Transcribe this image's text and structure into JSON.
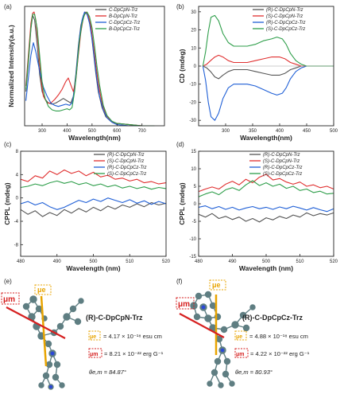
{
  "panels": {
    "a": "(a)",
    "b": "(b)",
    "c": "(c)",
    "d": "(d)",
    "e": "(e)",
    "f": "(f)"
  },
  "chart_data": [
    {
      "type": "line",
      "panel": "a",
      "xlabel": "Wavelength(nm)",
      "ylabel": "Normalized Intensity(a.u.)",
      "xlim": [
        230,
        790
      ],
      "ylim": [
        0,
        1.05
      ],
      "xticks": [
        300,
        400,
        500,
        600,
        700
      ],
      "yticks": [],
      "legend": "top-right",
      "series": [
        {
          "name": "C-DpCpN-Trz",
          "color": "#555555",
          "x": [
            235,
            245,
            255,
            262,
            270,
            280,
            290,
            300,
            310,
            325,
            340,
            355,
            370,
            385,
            400,
            415,
            425,
            435,
            445,
            455,
            465,
            475,
            485,
            495,
            505,
            515,
            525,
            540,
            555,
            575,
            600,
            650,
            700,
            750
          ],
          "y": [
            0.3,
            0.55,
            0.85,
            0.97,
            0.93,
            0.72,
            0.45,
            0.3,
            0.24,
            0.2,
            0.19,
            0.2,
            0.22,
            0.24,
            0.22,
            0.2,
            0.26,
            0.45,
            0.7,
            0.88,
            0.97,
            1.0,
            0.96,
            0.85,
            0.66,
            0.46,
            0.3,
            0.16,
            0.08,
            0.04,
            0.02,
            0.01,
            0.0,
            0.0
          ]
        },
        {
          "name": "B-DpCpN-Trz",
          "color": "#e03030",
          "x": [
            235,
            245,
            255,
            262,
            268,
            275,
            285,
            295,
            305,
            320,
            335,
            350,
            365,
            380,
            395,
            405,
            415,
            425,
            435,
            445,
            455,
            465,
            475,
            485,
            495,
            505,
            515,
            525,
            540,
            555,
            575,
            600,
            650,
            700,
            750
          ],
          "y": [
            0.35,
            0.62,
            0.9,
            0.99,
            1.0,
            0.93,
            0.7,
            0.42,
            0.26,
            0.2,
            0.2,
            0.23,
            0.27,
            0.32,
            0.39,
            0.42,
            0.36,
            0.3,
            0.4,
            0.62,
            0.82,
            0.95,
            1.0,
            0.97,
            0.88,
            0.72,
            0.54,
            0.37,
            0.2,
            0.1,
            0.04,
            0.02,
            0.01,
            0.0,
            0.0
          ]
        },
        {
          "name": "C-DpCpCz-Trz",
          "color": "#1f5fd6",
          "x": [
            235,
            245,
            255,
            265,
            275,
            290,
            305,
            320,
            335,
            350,
            365,
            380,
            395,
            410,
            420,
            430,
            440,
            450,
            460,
            470,
            480,
            490,
            500,
            510,
            520,
            530,
            545,
            560,
            580,
            600,
            650,
            700,
            750
          ],
          "y": [
            0.22,
            0.42,
            0.62,
            0.73,
            0.65,
            0.48,
            0.34,
            0.26,
            0.2,
            0.18,
            0.17,
            0.18,
            0.19,
            0.18,
            0.2,
            0.32,
            0.55,
            0.78,
            0.93,
            1.0,
            0.98,
            0.9,
            0.76,
            0.58,
            0.4,
            0.26,
            0.14,
            0.07,
            0.03,
            0.01,
            0.0,
            0.0,
            0.0
          ]
        },
        {
          "name": "B-DpCpCz-Trz",
          "color": "#2e9e4a",
          "x": [
            235,
            245,
            255,
            262,
            270,
            280,
            290,
            300,
            312,
            325,
            340,
            355,
            370,
            385,
            400,
            410,
            420,
            430,
            440,
            450,
            460,
            470,
            480,
            490,
            500,
            510,
            520,
            530,
            545,
            560,
            580,
            600,
            650,
            700,
            750
          ],
          "y": [
            0.32,
            0.58,
            0.86,
            0.98,
            0.98,
            0.86,
            0.62,
            0.38,
            0.24,
            0.17,
            0.14,
            0.13,
            0.13,
            0.14,
            0.15,
            0.14,
            0.16,
            0.3,
            0.52,
            0.75,
            0.9,
            0.98,
            1.0,
            0.96,
            0.86,
            0.7,
            0.52,
            0.36,
            0.18,
            0.09,
            0.04,
            0.02,
            0.01,
            0.0,
            0.0
          ]
        }
      ]
    },
    {
      "type": "line",
      "panel": "b",
      "xlabel": "Wavelength(nm)",
      "ylabel": "CD (mdeg)",
      "xlim": [
        250,
        500
      ],
      "ylim": [
        -33,
        33
      ],
      "xticks": [
        300,
        350,
        400,
        450,
        500
      ],
      "yticks": [
        -30,
        -20,
        -10,
        0,
        10,
        20,
        30
      ],
      "legend": "top-right",
      "series": [
        {
          "name": "(R)-C-DpCpN-Trz",
          "color": "#555555",
          "x": [
            258,
            265,
            272,
            280,
            287,
            295,
            305,
            315,
            325,
            340,
            355,
            370,
            385,
            400,
            410,
            420,
            430,
            440,
            450,
            465,
            480,
            500
          ],
          "y": [
            0,
            -1,
            -3,
            -6,
            -7,
            -5,
            -3,
            -2,
            -2,
            -2,
            -3,
            -4,
            -5,
            -5,
            -4,
            -2,
            -1,
            0,
            0,
            0,
            0,
            0
          ]
        },
        {
          "name": "(S)-C-DpCpN-Trz",
          "color": "#e03030",
          "x": [
            258,
            265,
            272,
            280,
            287,
            295,
            305,
            315,
            325,
            340,
            355,
            370,
            385,
            400,
            410,
            420,
            430,
            440,
            450,
            465,
            480,
            500
          ],
          "y": [
            0,
            1,
            3,
            5,
            6,
            5,
            3,
            2,
            2,
            2,
            3,
            4,
            5,
            5,
            4,
            2,
            1,
            0,
            0,
            0,
            0,
            0
          ]
        },
        {
          "name": "(R)-C-DpCpCz-Trz",
          "color": "#1f5fd6",
          "x": [
            258,
            263,
            268,
            273,
            280,
            287,
            295,
            305,
            315,
            325,
            340,
            355,
            370,
            385,
            395,
            405,
            412,
            420,
            430,
            440,
            450,
            465,
            480,
            500
          ],
          "y": [
            0,
            -8,
            -20,
            -28,
            -30,
            -26,
            -18,
            -12,
            -10,
            -10,
            -10,
            -11,
            -13,
            -15,
            -16,
            -15,
            -12,
            -7,
            -3,
            -1,
            0,
            0,
            0,
            0
          ]
        },
        {
          "name": "(S)-C-DpCpCz-Trz",
          "color": "#2e9e4a",
          "x": [
            258,
            263,
            268,
            273,
            280,
            287,
            295,
            305,
            315,
            325,
            340,
            355,
            370,
            385,
            395,
            405,
            412,
            420,
            430,
            440,
            450,
            465,
            480,
            500
          ],
          "y": [
            0,
            8,
            19,
            27,
            28,
            25,
            18,
            13,
            11,
            11,
            11,
            12,
            14,
            15,
            16,
            15,
            12,
            7,
            3,
            1,
            0,
            0,
            0,
            0
          ]
        }
      ]
    },
    {
      "type": "line",
      "panel": "c",
      "xlabel": "Wavelength (nm)",
      "ylabel": "CPPL (mdeg)",
      "xlim": [
        480,
        520
      ],
      "ylim": [
        -10,
        8
      ],
      "xticks": [
        480,
        490,
        500,
        510,
        520
      ],
      "yticks": [
        -8,
        -4,
        0,
        4,
        8
      ],
      "legend": "top-right",
      "series": [
        {
          "name": "(R)-C-DpCpN-Trz",
          "color": "#555555",
          "x": [
            480,
            482,
            484,
            486,
            488,
            490,
            492,
            494,
            496,
            498,
            500,
            502,
            504,
            506,
            508,
            510,
            512,
            514,
            516,
            518,
            520
          ],
          "y": [
            -2.0,
            -2.8,
            -2.2,
            -3.2,
            -2.5,
            -3.0,
            -2.0,
            -2.6,
            -1.8,
            -2.4,
            -1.6,
            -2.2,
            -1.4,
            -1.9,
            -1.2,
            -1.6,
            -1.0,
            -1.5,
            -0.8,
            -1.2,
            -0.9
          ]
        },
        {
          "name": "(S)-C-DpCpN-Trz",
          "color": "#e03030",
          "x": [
            480,
            482,
            484,
            486,
            488,
            490,
            492,
            494,
            496,
            498,
            500,
            502,
            504,
            506,
            508,
            510,
            512,
            514,
            516,
            518,
            520
          ],
          "y": [
            3.2,
            2.8,
            3.8,
            3.4,
            4.6,
            4.0,
            4.8,
            4.2,
            4.6,
            3.8,
            4.4,
            3.6,
            3.9,
            3.2,
            3.4,
            2.9,
            3.2,
            2.6,
            2.8,
            2.4,
            2.6
          ]
        },
        {
          "name": "(R)-C-DpCpCz-Trz",
          "color": "#1f5fd6",
          "x": [
            480,
            482,
            484,
            486,
            488,
            490,
            492,
            494,
            496,
            498,
            500,
            502,
            504,
            506,
            508,
            510,
            512,
            514,
            516,
            518,
            520
          ],
          "y": [
            -1.0,
            -0.6,
            -1.2,
            -0.8,
            -1.5,
            -2.0,
            -1.6,
            -1.0,
            -0.4,
            -0.8,
            -0.2,
            -0.6,
            0.0,
            -0.4,
            -0.8,
            -0.3,
            -0.9,
            -0.5,
            -1.1,
            -0.6,
            -1.0
          ]
        },
        {
          "name": "(S)-C-DpCpCz-Trz",
          "color": "#2e9e4a",
          "x": [
            480,
            482,
            484,
            486,
            488,
            490,
            492,
            494,
            496,
            498,
            500,
            502,
            504,
            506,
            508,
            510,
            512,
            514,
            516,
            518,
            520
          ],
          "y": [
            1.8,
            2.0,
            2.4,
            2.1,
            2.6,
            2.9,
            2.5,
            2.8,
            2.3,
            2.6,
            2.1,
            2.4,
            1.9,
            2.2,
            1.7,
            2.0,
            1.6,
            1.9,
            1.5,
            1.8,
            1.6
          ]
        }
      ]
    },
    {
      "type": "line",
      "panel": "d",
      "xlabel": "Wavelength (nm)",
      "ylabel": "CPPL (mdeg)",
      "xlim": [
        480,
        520
      ],
      "ylim": [
        -15,
        15
      ],
      "xticks": [
        480,
        490,
        500,
        510,
        520
      ],
      "yticks": [
        -15,
        -10,
        -5,
        0,
        5,
        10,
        15
      ],
      "legend": "top-right",
      "series": [
        {
          "name": "(R)-C-DpCpN-Trz",
          "color": "#555555",
          "x": [
            480,
            482,
            484,
            486,
            488,
            490,
            492,
            494,
            496,
            498,
            500,
            502,
            504,
            506,
            508,
            510,
            512,
            514,
            516,
            518,
            520
          ],
          "y": [
            -3.0,
            -3.8,
            -2.8,
            -4.2,
            -3.6,
            -4.5,
            -3.8,
            -5.0,
            -4.2,
            -5.2,
            -4.0,
            -4.6,
            -3.6,
            -4.2,
            -3.2,
            -3.8,
            -2.6,
            -3.4,
            -2.8,
            -3.2,
            -2.6
          ]
        },
        {
          "name": "(S)-C-DpCpN-Trz",
          "color": "#e03030",
          "x": [
            480,
            482,
            484,
            486,
            488,
            490,
            492,
            494,
            496,
            498,
            500,
            502,
            504,
            506,
            508,
            510,
            512,
            514,
            516,
            518,
            520
          ],
          "y": [
            3.5,
            4.2,
            4.8,
            4.2,
            5.6,
            6.4,
            5.4,
            7.0,
            6.0,
            7.6,
            8.4,
            6.8,
            7.2,
            6.2,
            5.6,
            6.2,
            5.0,
            5.4,
            4.6,
            5.0,
            4.2
          ]
        },
        {
          "name": "(R)-C-DpCpCz-Trz",
          "color": "#1f5fd6",
          "x": [
            480,
            482,
            484,
            486,
            488,
            490,
            492,
            494,
            496,
            498,
            500,
            502,
            504,
            506,
            508,
            510,
            512,
            514,
            516,
            518,
            520
          ],
          "y": [
            -1.0,
            -0.6,
            -1.4,
            -0.8,
            -1.6,
            -1.0,
            -1.8,
            -1.2,
            -0.8,
            -1.4,
            -1.0,
            -1.6,
            -0.9,
            -1.4,
            -0.7,
            -1.2,
            -1.8,
            -1.1,
            -1.7,
            -2.2,
            -1.4
          ]
        },
        {
          "name": "(S)-C-DpCpCz-Trz",
          "color": "#2e9e4a",
          "x": [
            480,
            482,
            484,
            486,
            488,
            490,
            492,
            494,
            496,
            498,
            500,
            502,
            504,
            506,
            508,
            510,
            512,
            514,
            516,
            518,
            520
          ],
          "y": [
            2.0,
            2.8,
            3.4,
            2.6,
            4.0,
            4.6,
            3.8,
            5.4,
            6.6,
            5.2,
            6.0,
            5.0,
            5.6,
            4.4,
            5.0,
            3.8,
            4.2,
            3.2,
            3.6,
            2.8,
            3.0
          ]
        }
      ]
    }
  ],
  "molecules": [
    {
      "panel": "e",
      "name": "(R)-C-DpCpN-Trz",
      "mu_e_label": "μe",
      "mu_m_label": "μm",
      "mu_e_value": "= 4.17 × 10⁻¹⁸ esu cm",
      "mu_m_value": "= 8.21 × 10⁻²² erg G⁻¹",
      "theta_value": "θe,m = 84.87°"
    },
    {
      "panel": "f",
      "name": "(R)-C-DpCpCz-Trz",
      "mu_e_label": "μe",
      "mu_m_label": "μm",
      "mu_e_value": "= 4.88 × 10⁻¹⁸ esu cm",
      "mu_m_value": "= 4.22 × 10⁻²² erg G⁻¹",
      "theta_value": "θe,m = 80.93°"
    }
  ],
  "colors": {
    "mu_e": "#e8a400",
    "mu_m": "#d62020",
    "molecule_c": "#5f7e82",
    "molecule_n": "#2b48d6"
  }
}
